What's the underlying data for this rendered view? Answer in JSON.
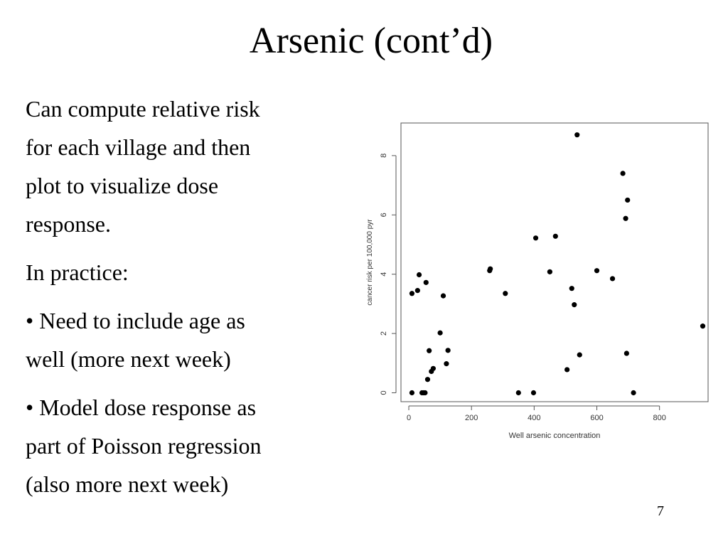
{
  "slide": {
    "title": "Arsenic (cont’d)",
    "paragraphs": [
      {
        "lines": [
          "Can compute relative risk",
          "for each village and then",
          "plot to visualize dose",
          "response."
        ]
      },
      {
        "lines": [
          "In practice:"
        ]
      },
      {
        "lines": [
          "• Need to include age as",
          "well (more next week)"
        ]
      },
      {
        "lines": [
          "•  Model dose response as",
          "part of Poisson regression",
          "(also more next week)"
        ]
      }
    ],
    "page_number": "7"
  },
  "chart_data": {
    "type": "scatter",
    "xlabel": "Well arsenic concentration",
    "ylabel": "cancer risk per 100,000 pyr",
    "xlim": [
      -25,
      955
    ],
    "ylim": [
      -0.3,
      9.1
    ],
    "xticks": [
      0,
      200,
      400,
      600,
      800
    ],
    "yticks": [
      0,
      2,
      4,
      6,
      8
    ],
    "grid": false,
    "marker_color": "#000000",
    "points": [
      {
        "x": 10,
        "y": 0.0
      },
      {
        "x": 10,
        "y": 3.35
      },
      {
        "x": 28,
        "y": 3.45
      },
      {
        "x": 33,
        "y": 3.98
      },
      {
        "x": 42,
        "y": 0.0
      },
      {
        "x": 47,
        "y": 0.0
      },
      {
        "x": 52,
        "y": 0.0
      },
      {
        "x": 55,
        "y": 3.72
      },
      {
        "x": 60,
        "y": 0.45
      },
      {
        "x": 65,
        "y": 1.42
      },
      {
        "x": 72,
        "y": 0.72
      },
      {
        "x": 78,
        "y": 0.82
      },
      {
        "x": 100,
        "y": 2.02
      },
      {
        "x": 110,
        "y": 3.27
      },
      {
        "x": 120,
        "y": 0.98
      },
      {
        "x": 125,
        "y": 1.43
      },
      {
        "x": 258,
        "y": 4.12
      },
      {
        "x": 260,
        "y": 4.18
      },
      {
        "x": 308,
        "y": 3.35
      },
      {
        "x": 350,
        "y": 0.0
      },
      {
        "x": 398,
        "y": 0.0
      },
      {
        "x": 405,
        "y": 5.22
      },
      {
        "x": 450,
        "y": 4.08
      },
      {
        "x": 468,
        "y": 5.28
      },
      {
        "x": 505,
        "y": 0.78
      },
      {
        "x": 520,
        "y": 3.52
      },
      {
        "x": 528,
        "y": 2.97
      },
      {
        "x": 537,
        "y": 8.7
      },
      {
        "x": 545,
        "y": 1.28
      },
      {
        "x": 600,
        "y": 4.12
      },
      {
        "x": 650,
        "y": 3.85
      },
      {
        "x": 683,
        "y": 7.4
      },
      {
        "x": 692,
        "y": 5.88
      },
      {
        "x": 695,
        "y": 1.33
      },
      {
        "x": 698,
        "y": 6.5
      },
      {
        "x": 717,
        "y": 0.0
      },
      {
        "x": 938,
        "y": 2.25
      }
    ]
  }
}
